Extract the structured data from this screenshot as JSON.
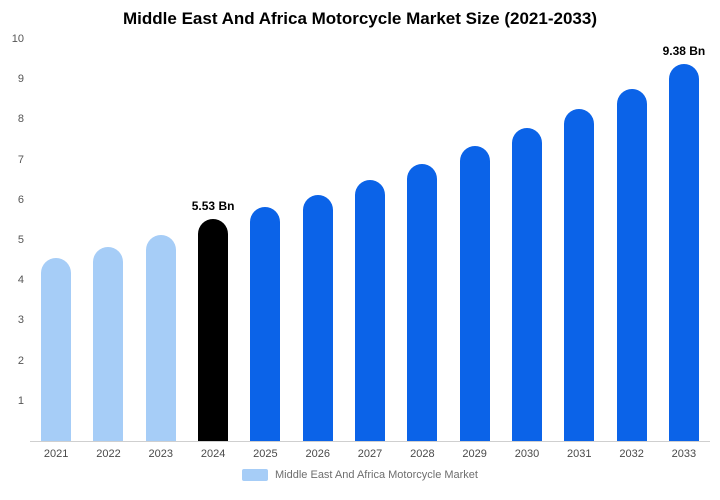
{
  "chart_data": {
    "type": "bar",
    "title": "Middle East And Africa Motorcycle Market Size (2021-2033)",
    "legend": "Middle East And Africa Motorcycle Market",
    "ylim": [
      0,
      10
    ],
    "yticks": [
      1,
      2,
      3,
      4,
      5,
      6,
      7,
      8,
      9,
      10
    ],
    "grid": false,
    "legend_position": "bottom",
    "categories": [
      "2021",
      "2022",
      "2023",
      "2024",
      "2025",
      "2026",
      "2027",
      "2028",
      "2029",
      "2030",
      "2031",
      "2032",
      "2033"
    ],
    "values": [
      4.55,
      4.82,
      5.12,
      5.53,
      5.82,
      6.12,
      6.5,
      6.9,
      7.35,
      7.78,
      8.25,
      8.75,
      9.38
    ],
    "bar_color_keys": [
      "light",
      "light",
      "light",
      "highlight",
      "primary",
      "primary",
      "primary",
      "primary",
      "primary",
      "primary",
      "primary",
      "primary",
      "primary"
    ],
    "annotations": [
      {
        "index": 3,
        "text": "5.53 Bn"
      },
      {
        "index": 12,
        "text": "9.38 Bn"
      }
    ],
    "colors": {
      "light": "#a6cdf7",
      "highlight": "#000000",
      "primary": "#0b63e8",
      "axis_text": "#555555",
      "x_text": "#4a4a4a",
      "legend_text": "#6e6e6e",
      "baseline": "#cfcfcf",
      "background": "#ffffff"
    }
  }
}
